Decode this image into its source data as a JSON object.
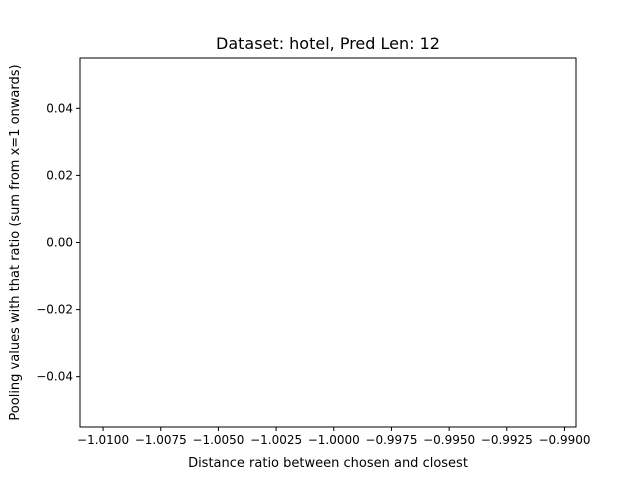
{
  "chart_data": {
    "type": "line",
    "title": "Dataset: hotel, Pred Len: 12",
    "xlabel": "Distance ratio between chosen and closest",
    "ylabel": "Pooling values with that ratio (sum from x=1 onwards)",
    "xlim": [
      -1.011,
      -0.9895
    ],
    "ylim": [
      -0.055,
      0.055
    ],
    "x_ticks": [
      -1.01,
      -1.0075,
      -1.005,
      -1.0025,
      -1.0,
      -0.9975,
      -0.995,
      -0.9925,
      -0.99
    ],
    "x_tick_labels": [
      "−1.0100",
      "−1.0075",
      "−1.0050",
      "−1.0025",
      "−1.0000",
      "−0.9975",
      "−0.9950",
      "−0.9925",
      "−0.9900"
    ],
    "y_ticks": [
      -0.04,
      -0.02,
      0.0,
      0.02,
      0.04
    ],
    "y_tick_labels": [
      "−0.04",
      "−0.02",
      "0.00",
      "0.02",
      "0.04"
    ],
    "grid": false,
    "series": [
      {
        "x": [],
        "y": [],
        "color": "#1f77b4"
      }
    ]
  }
}
